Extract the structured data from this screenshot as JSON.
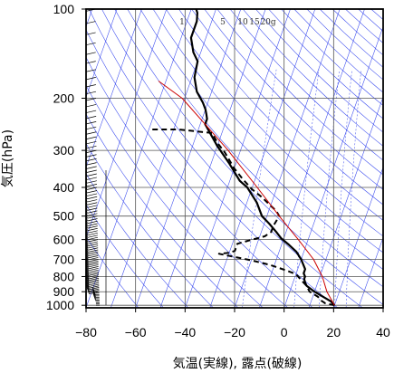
{
  "chart_data": {
    "type": "line",
    "diagram": "Skew-T log-P",
    "xlabel": "気温(実線), 露点(破線)",
    "ylabel": "気圧(hPa)",
    "x_ticks": [
      -80,
      -60,
      -40,
      -20,
      0,
      20,
      40
    ],
    "x_tick_labels": [
      "−80",
      "−60",
      "−40",
      "−20",
      "0",
      "20",
      "40"
    ],
    "xlim": [
      -80,
      40
    ],
    "y_scale": "log",
    "ylim": [
      1020,
      100
    ],
    "y_ticks": [
      100,
      200,
      300,
      400,
      500,
      600,
      700,
      800,
      900,
      1000
    ],
    "y_tick_labels": [
      "100",
      "200",
      "300",
      "400",
      "500",
      "600",
      "700",
      "800",
      "900",
      "1000"
    ],
    "mixing_ratio_labels": [
      "1",
      "5",
      "10",
      "15",
      "20g"
    ],
    "colors": {
      "temperature": "#000000",
      "dewpoint": "#000000",
      "parcel": "#cc0000",
      "background_lines": "#3344ee",
      "grid": "#555555"
    },
    "series": [
      {
        "name": "",
        "style": "solid",
        "points": [
          [
            20,
            1000
          ],
          [
            18,
            970
          ],
          [
            14,
            935
          ],
          [
            10,
            900
          ],
          [
            6,
            860
          ],
          [
            5,
            840
          ],
          [
            4,
            815
          ],
          [
            4,
            800
          ],
          [
            3,
            780
          ],
          [
            3,
            755
          ],
          [
            0,
            700
          ],
          [
            -3,
            660
          ],
          [
            -7,
            625
          ],
          [
            -11,
            595
          ],
          [
            -14,
            565
          ],
          [
            -18,
            530
          ],
          [
            -22,
            500
          ],
          [
            -26,
            450
          ],
          [
            -32,
            400
          ],
          [
            -36,
            380
          ],
          [
            -43,
            330
          ],
          [
            -50,
            290
          ],
          [
            -57,
            250
          ],
          [
            -58,
            245
          ],
          [
            -58,
            235
          ],
          [
            -59,
            226
          ],
          [
            -60,
            218
          ],
          [
            -62,
            207
          ],
          [
            -66,
            190
          ],
          [
            -69,
            170
          ],
          [
            -70,
            150
          ],
          [
            -73,
            140
          ],
          [
            -76,
            125
          ],
          [
            -76,
            110
          ],
          [
            -77,
            103
          ],
          [
            -78,
            100
          ]
        ]
      },
      {
        "name": "",
        "style": "dashed",
        "points": [
          [
            20,
            1000
          ],
          [
            16,
            985
          ],
          [
            14,
            965
          ],
          [
            12,
            935
          ],
          [
            8,
            900
          ],
          [
            6,
            860
          ],
          [
            4,
            835
          ],
          [
            2,
            810
          ],
          [
            0,
            785
          ],
          [
            -5,
            760
          ],
          [
            -12,
            730
          ],
          [
            -20,
            705
          ],
          [
            -30,
            680
          ],
          [
            -34,
            670
          ],
          [
            -30,
            665
          ],
          [
            -28,
            655
          ],
          [
            -28,
            620
          ],
          [
            -24,
            605
          ],
          [
            -18,
            585
          ],
          [
            -16,
            565
          ],
          [
            -16,
            540
          ],
          [
            -15,
            500
          ],
          [
            -17,
            480
          ],
          [
            -25,
            430
          ],
          [
            -30,
            405
          ],
          [
            -35,
            375
          ],
          [
            -40,
            345
          ],
          [
            -46,
            305
          ],
          [
            -50,
            285
          ],
          [
            -54,
            262
          ],
          [
            -68,
            255
          ],
          [
            -80,
            255
          ]
        ]
      },
      {
        "name": "",
        "style": "solid-thin",
        "points": [
          [
            20,
            1000
          ],
          [
            15,
            900
          ],
          [
            11,
            800
          ],
          [
            5,
            700
          ],
          [
            -4,
            600
          ],
          [
            -15,
            500
          ],
          [
            -28,
            400
          ],
          [
            -45,
            300
          ],
          [
            -71,
            200
          ],
          [
            -83,
            175
          ]
        ]
      }
    ]
  }
}
